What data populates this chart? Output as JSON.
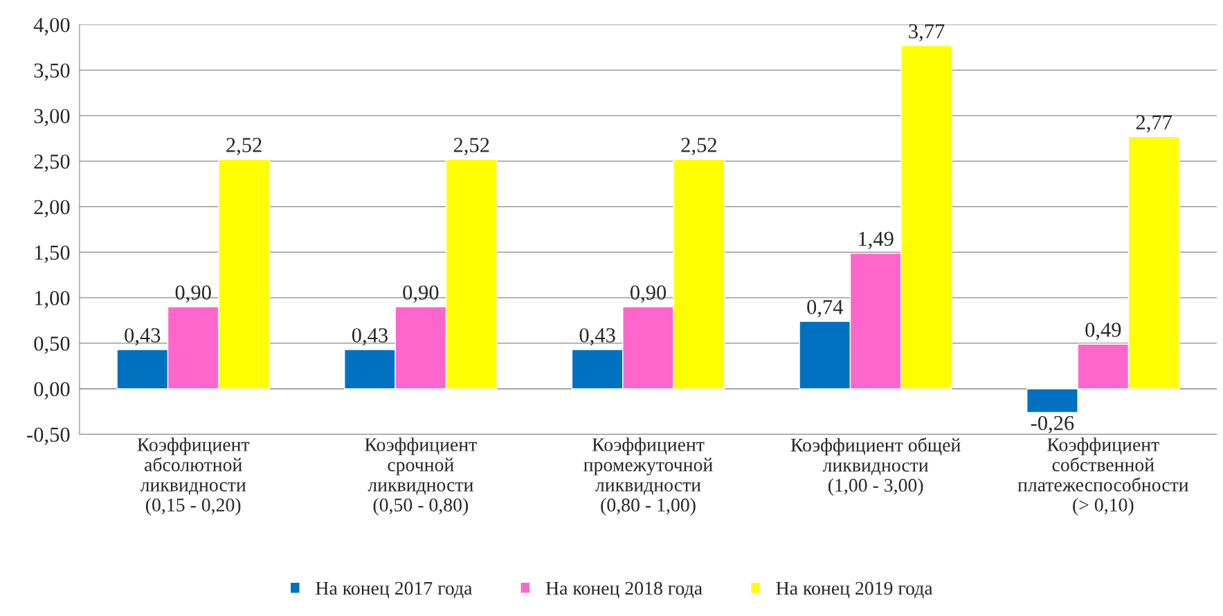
{
  "chart_data": {
    "type": "bar",
    "categories": [
      "Коэффициент\nабсолютной\nликвидности\n(0,15 - 0,20)",
      "Коэффициент\nсрочной\nликвидности\n(0,50 - 0,80)",
      "Коэффициент\nпромежуточной\nликвидности\n(0,80 - 1,00)",
      "Коэффициент общей\nликвидности\n(1,00 - 3,00)",
      "Коэффициент\nсобственной\nплатежеспособности\n(> 0,10)"
    ],
    "series": [
      {
        "name": "На конец 2017 года",
        "color": "#0070c0",
        "values": [
          0.43,
          0.43,
          0.43,
          0.74,
          -0.26
        ],
        "value_labels": [
          "0,43",
          "0,43",
          "0,43",
          "0,74",
          "-0,26"
        ]
      },
      {
        "name": "На конец 2018 года",
        "color": "#ff66cc",
        "values": [
          0.9,
          0.9,
          0.9,
          1.49,
          0.49
        ],
        "value_labels": [
          "0,90",
          "0,90",
          "0,90",
          "1,49",
          "0,49"
        ]
      },
      {
        "name": "На конец 2019 года",
        "color": "#ffff00",
        "values": [
          2.52,
          2.52,
          2.52,
          3.77,
          2.77
        ],
        "value_labels": [
          "2,52",
          "2,52",
          "2,52",
          "3,77",
          "2,77"
        ]
      }
    ],
    "ylim": [
      -0.5,
      4.0
    ],
    "yticks": [
      {
        "value": -0.5,
        "label": "-0,50"
      },
      {
        "value": 0,
        "label": "0,00"
      },
      {
        "value": 0.5,
        "label": "0,50"
      },
      {
        "value": 1.0,
        "label": "1,00"
      },
      {
        "value": 1.5,
        "label": "1,50"
      },
      {
        "value": 2.0,
        "label": "2,00"
      },
      {
        "value": 2.5,
        "label": "2,50"
      },
      {
        "value": 3.0,
        "label": "3,00"
      },
      {
        "value": 3.5,
        "label": "3,50"
      },
      {
        "value": 4.0,
        "label": "4,00"
      }
    ],
    "grid": "y",
    "legend": "bottom"
  }
}
